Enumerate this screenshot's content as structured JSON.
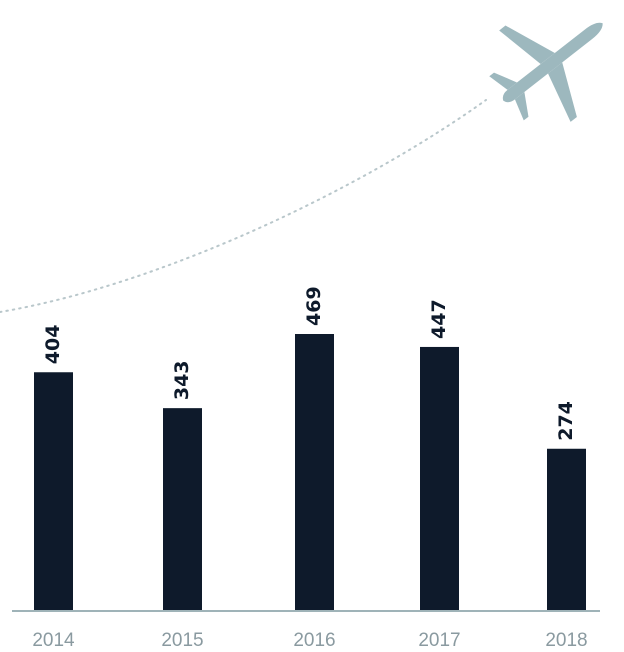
{
  "chart_data": {
    "type": "bar",
    "categories": [
      "2014",
      "2015",
      "2016",
      "2017",
      "2018"
    ],
    "values": [
      404,
      343,
      469,
      447,
      274
    ],
    "title": "",
    "xlabel": "",
    "ylabel": "",
    "ylim": [
      0,
      469
    ],
    "grid": false,
    "legend": "none",
    "bar_value_labels": [
      "404",
      "343",
      "469",
      "447",
      "274"
    ]
  },
  "colors": {
    "bar": "#0e1a2b",
    "axis": "#9fb3b8",
    "tick_text": "#8a9aa0",
    "plane": "#9db8be",
    "trail": "#b9c7cb"
  },
  "icons": {
    "plane": "airplane-icon"
  }
}
